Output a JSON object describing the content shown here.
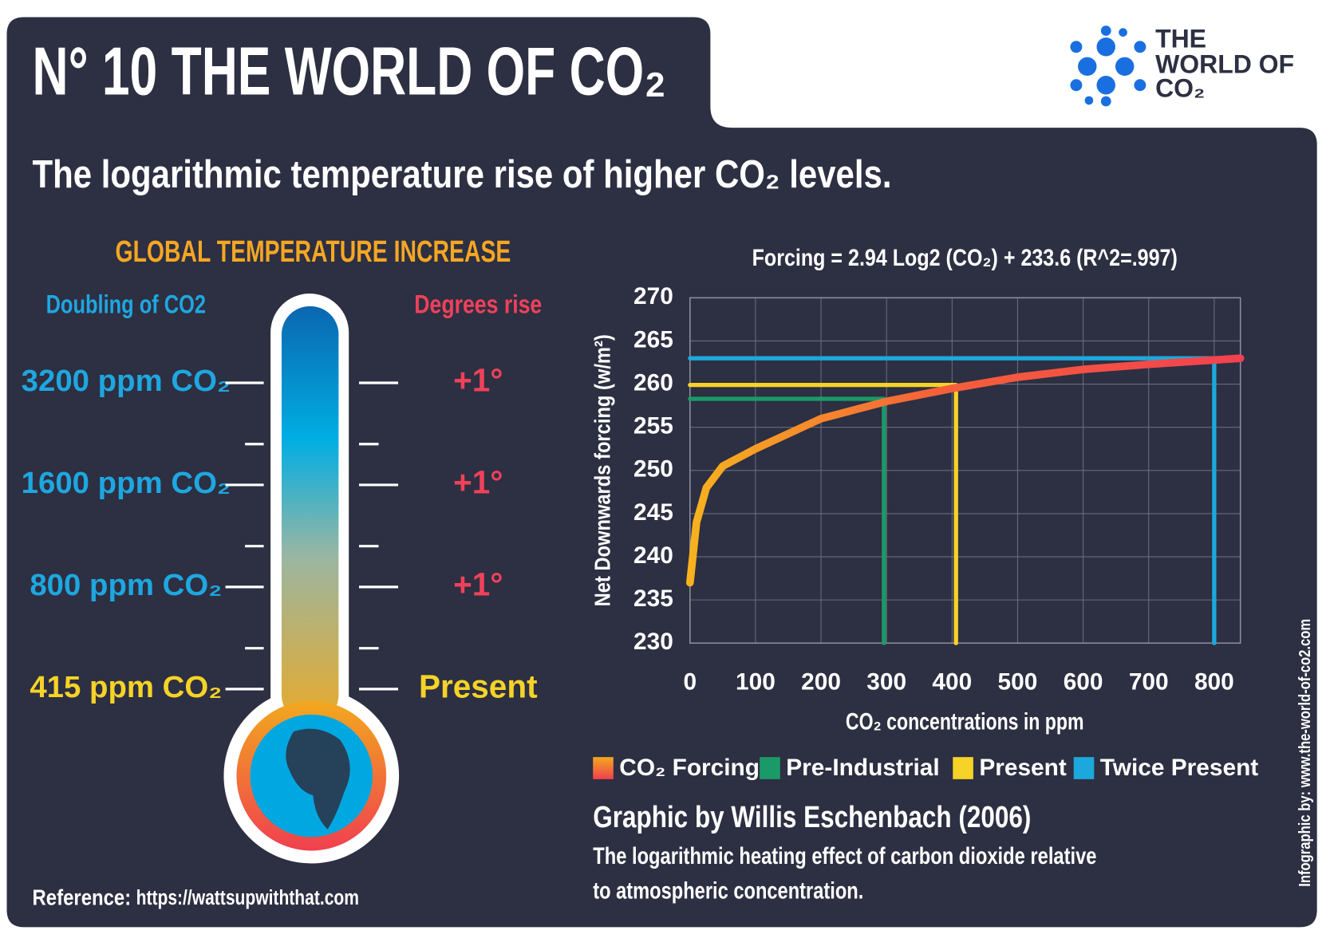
{
  "header": {
    "title": "N° 10  THE WORLD OF CO₂",
    "subtitle": "The logarithmic temperature rise of higher CO₂ levels.",
    "logo": [
      "THE",
      "WORLD OF",
      "CO₂"
    ]
  },
  "thermometer": {
    "title": "GLOBAL TEMPERATURE INCREASE",
    "left_heading": "Doubling of CO2",
    "right_heading": "Degrees rise",
    "levels": [
      "3200 ppm CO₂",
      "1600 ppm CO₂",
      "800 ppm CO₂",
      "415 ppm CO₂"
    ],
    "rises": [
      "+1°",
      "+1°",
      "+1°",
      "Present"
    ]
  },
  "chart_data": {
    "type": "line",
    "title": "Forcing = 2.94 Log2 (CO₂) + 233.6 (R^2=.997)",
    "x_label": "CO₂ concentrations in ppm",
    "y_label": "Net Downwards forcing (w/m²)",
    "xlim": [
      0,
      840
    ],
    "ylim": [
      230,
      270
    ],
    "xticks": [
      0,
      100,
      200,
      300,
      400,
      500,
      600,
      700,
      800
    ],
    "yticks": [
      230,
      235,
      240,
      245,
      250,
      255,
      260,
      265,
      270
    ],
    "grid": true,
    "series": [
      {
        "name": "CO₂ Forcing",
        "color": "#f2414f",
        "x": [
          0,
          10,
          25,
          50,
          100,
          200,
          300,
          400,
          500,
          600,
          700,
          800,
          840
        ],
        "values": [
          237,
          244,
          248,
          250.5,
          252.5,
          256,
          258,
          259.5,
          260.8,
          261.7,
          262.3,
          262.8,
          263
        ]
      },
      {
        "name": "Pre-Industrial",
        "color": "#1a9a68",
        "x": [
          0,
          296,
          296
        ],
        "values": [
          258.3,
          258.3,
          230
        ]
      },
      {
        "name": "Present",
        "color": "#f5d327",
        "x": [
          0,
          406,
          406
        ],
        "values": [
          259.9,
          259.9,
          230
        ]
      },
      {
        "name": "Twice Present",
        "color": "#1ca8dc",
        "x": [
          0,
          800,
          800
        ],
        "values": [
          263,
          263,
          230
        ]
      }
    ]
  },
  "caption": {
    "title": "Graphic by Willis Eschenbach (2006)",
    "lines": [
      "The logarithmic heating effect of carbon dioxide relative",
      "to atmospheric concentration."
    ]
  },
  "credit": "Infographic by: www.the-world-of-co2.com",
  "reference": {
    "label": "Reference:",
    "url": "https://wattsupwiththat.com"
  }
}
